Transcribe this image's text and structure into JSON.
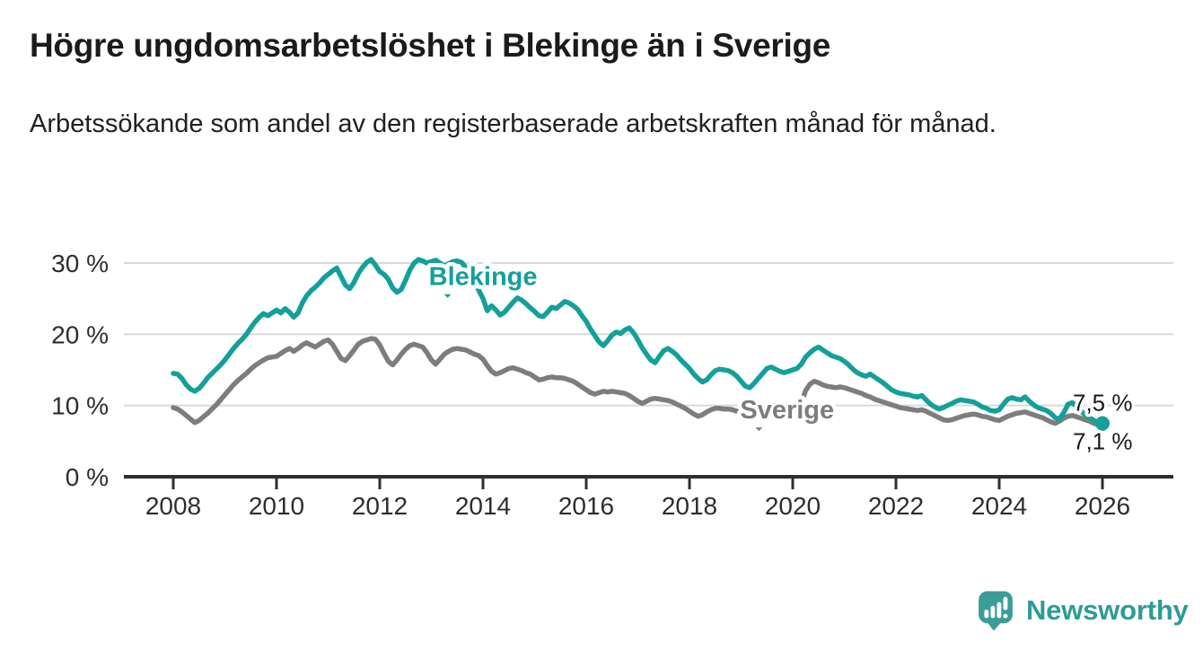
{
  "header": {
    "title": "Högre ungdomsarbetslöshet i Blekinge än i Sverige",
    "subtitle": "Arbetssökande som andel av den registerbaserade arbetskraften månad för månad."
  },
  "chart_data": {
    "type": "line",
    "frequency": "monthly",
    "x_start": "2008-01",
    "x_end": "2026-01",
    "x_ticks": [
      2008,
      2010,
      2012,
      2014,
      2016,
      2018,
      2020,
      2022,
      2024,
      2026
    ],
    "y_ticks": [
      {
        "value": 0,
        "label": "0 %"
      },
      {
        "value": 10,
        "label": "10 %"
      },
      {
        "value": 20,
        "label": "20 %"
      },
      {
        "value": 30,
        "label": "30 %"
      }
    ],
    "ylim": [
      0,
      31
    ],
    "grid": true,
    "legend_position": "inline-labels",
    "colors": {
      "axis": "#2f2f2f",
      "grid": "#d9d9d9",
      "tick_text": "#2d2d2d",
      "end_label_text": "#1a1a1a"
    },
    "series": [
      {
        "name": "Blekinge",
        "color": "#14a09a",
        "end_label": "7,5 %",
        "end_value": 7.5,
        "label_anchor": {
          "year": 2012.95,
          "value": 26.9
        },
        "end_label_offset": [
          -33,
          -14
        ],
        "dot_radius": 8,
        "values": [
          14.5,
          14.4,
          13.8,
          12.9,
          12.3,
          12.0,
          12.4,
          13.1,
          13.9,
          14.5,
          15.1,
          15.7,
          16.4,
          17.2,
          18.0,
          18.7,
          19.3,
          20.0,
          20.9,
          21.7,
          22.4,
          22.9,
          22.6,
          23.0,
          23.4,
          23.0,
          23.6,
          23.1,
          22.4,
          23.0,
          24.4,
          25.4,
          26.1,
          26.6,
          27.2,
          27.9,
          28.4,
          28.9,
          29.3,
          28.1,
          26.9,
          26.4,
          27.3,
          28.5,
          29.4,
          30.1,
          30.5,
          29.7,
          28.8,
          28.4,
          27.7,
          26.5,
          25.9,
          26.3,
          27.6,
          29.0,
          30.0,
          30.5,
          30.3,
          30.0,
          30.2,
          30.4,
          30.0,
          29.6,
          29.9,
          30.2,
          30.3,
          30.1,
          29.4,
          28.3,
          27.2,
          26.2,
          25.0,
          23.3,
          24.0,
          23.4,
          22.7,
          23.1,
          23.8,
          24.5,
          25.1,
          24.8,
          24.3,
          23.7,
          23.2,
          22.6,
          22.5,
          23.1,
          23.8,
          23.6,
          24.1,
          24.6,
          24.4,
          24.0,
          23.5,
          22.6,
          21.8,
          20.7,
          19.8,
          18.9,
          18.4,
          19.1,
          19.9,
          20.3,
          20.1,
          20.6,
          20.9,
          20.2,
          19.2,
          18.1,
          17.2,
          16.4,
          16.0,
          16.9,
          17.7,
          18.0,
          17.6,
          17.1,
          16.4,
          15.8,
          15.2,
          14.4,
          13.8,
          13.3,
          13.6,
          14.3,
          14.9,
          15.1,
          15.0,
          14.9,
          14.6,
          14.1,
          13.4,
          12.7,
          12.5,
          13.1,
          13.8,
          14.5,
          15.2,
          15.4,
          15.1,
          14.8,
          14.6,
          14.8,
          15.0,
          15.2,
          15.8,
          16.8,
          17.4,
          17.9,
          18.2,
          17.8,
          17.4,
          17.0,
          16.8,
          16.6,
          16.2,
          15.7,
          15.1,
          14.6,
          14.3,
          14.1,
          14.4,
          14.0,
          13.6,
          13.2,
          12.7,
          12.2,
          11.9,
          11.7,
          11.6,
          11.5,
          11.3,
          11.2,
          11.4,
          10.8,
          10.2,
          9.8,
          9.5,
          9.7,
          10.0,
          10.3,
          10.6,
          10.8,
          10.7,
          10.6,
          10.5,
          10.2,
          9.8,
          9.6,
          9.3,
          9.2,
          9.4,
          10.2,
          10.9,
          11.1,
          10.9,
          10.8,
          11.2,
          10.6,
          10.1,
          9.7,
          9.5,
          9.3,
          8.9,
          8.3,
          8.1,
          9.0,
          10.2,
          10.4,
          9.8,
          9.2,
          8.7,
          8.3,
          7.9,
          7.6,
          7.5
        ]
      },
      {
        "name": "Sverige",
        "color": "#7d7d7d",
        "end_label": "7,1 %",
        "end_value": 7.1,
        "label_anchor": {
          "year": 2018.98,
          "value": 8.2
        },
        "end_label_offset": [
          -33,
          26
        ],
        "dot_radius": 5.5,
        "values": [
          9.7,
          9.5,
          9.1,
          8.6,
          8.1,
          7.6,
          7.9,
          8.4,
          8.9,
          9.5,
          10.1,
          10.8,
          11.5,
          12.2,
          12.9,
          13.5,
          14.0,
          14.5,
          15.1,
          15.6,
          16.0,
          16.4,
          16.7,
          16.8,
          16.9,
          17.3,
          17.7,
          18.0,
          17.6,
          18.0,
          18.5,
          18.8,
          18.5,
          18.2,
          18.6,
          19.0,
          19.2,
          18.6,
          17.6,
          16.6,
          16.3,
          17.0,
          17.8,
          18.6,
          19.0,
          19.2,
          19.4,
          19.3,
          18.5,
          17.3,
          16.2,
          15.7,
          16.4,
          17.2,
          17.9,
          18.4,
          18.6,
          18.4,
          18.2,
          17.4,
          16.4,
          15.8,
          16.5,
          17.2,
          17.6,
          17.9,
          18.0,
          17.9,
          17.8,
          17.5,
          17.2,
          17.0,
          16.5,
          15.6,
          14.8,
          14.4,
          14.6,
          14.9,
          15.2,
          15.3,
          15.1,
          14.9,
          14.6,
          14.4,
          14.0,
          13.6,
          13.7,
          13.9,
          14.0,
          13.9,
          13.9,
          13.8,
          13.6,
          13.4,
          13.0,
          12.6,
          12.2,
          11.8,
          11.6,
          11.8,
          12.0,
          11.9,
          12.0,
          11.9,
          11.8,
          11.7,
          11.4,
          11.0,
          10.6,
          10.3,
          10.6,
          10.9,
          11.0,
          10.9,
          10.8,
          10.7,
          10.5,
          10.2,
          9.9,
          9.6,
          9.2,
          8.8,
          8.5,
          8.7,
          9.1,
          9.4,
          9.6,
          9.6,
          9.5,
          9.5,
          9.4,
          9.2,
          8.9,
          8.6,
          8.7,
          8.9,
          9.1,
          9.2,
          9.3,
          9.2,
          9.1,
          9.1,
          9.2,
          9.3,
          9.4,
          9.6,
          10.4,
          12.1,
          13.0,
          13.4,
          13.2,
          12.9,
          12.7,
          12.6,
          12.5,
          12.6,
          12.5,
          12.3,
          12.1,
          11.9,
          11.7,
          11.4,
          11.2,
          10.9,
          10.7,
          10.5,
          10.3,
          10.1,
          9.9,
          9.7,
          9.6,
          9.5,
          9.4,
          9.3,
          9.4,
          9.2,
          8.9,
          8.6,
          8.3,
          8.0,
          7.9,
          8.0,
          8.2,
          8.4,
          8.6,
          8.7,
          8.8,
          8.7,
          8.5,
          8.4,
          8.2,
          8.0,
          7.9,
          8.2,
          8.5,
          8.7,
          8.9,
          9.0,
          9.1,
          8.9,
          8.7,
          8.5,
          8.3,
          8.0,
          7.7,
          7.5,
          7.8,
          8.2,
          8.5,
          8.6,
          8.4,
          8.2,
          8.0,
          7.8,
          7.5,
          7.3,
          7.1
        ]
      }
    ]
  },
  "footer": {
    "brand": "Newsworthy",
    "logo_color": "#3a9d98",
    "text_color": "#2e9b96"
  }
}
